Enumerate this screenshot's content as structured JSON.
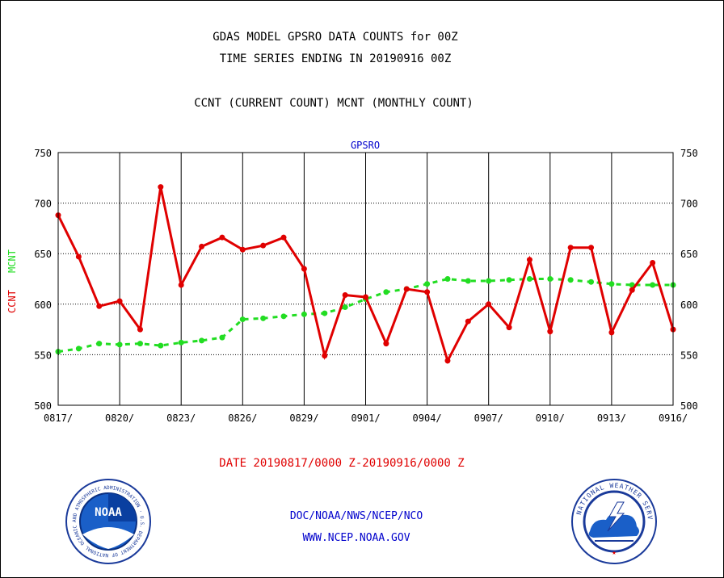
{
  "header": {
    "title_line1": "GDAS MODEL GPSRO DATA COUNTS for 00Z",
    "title_line2": "TIME SERIES ENDING IN 20190916 00Z",
    "subtitle": "CCNT (CURRENT COUNT) MCNT (MONTHLY COUNT)"
  },
  "footer": {
    "date_range": "DATE 20190817/0000 Z-20190916/0000 Z",
    "org_path": "DOC/NOAA/NWS/NCEP/NCO",
    "url": "WWW.NCEP.NOAA.GOV",
    "noaa_logo_text": "NOAA",
    "noaa_ring_text": "NATIONAL OCEANIC AND ATMOSPHERIC ADMINISTRATION · U.S. DEPARTMENT OF COMMERCE",
    "nws_ring_text": "NATIONAL WEATHER SERVICE"
  },
  "colors": {
    "ccnt": "#e00000",
    "mcnt": "#22dd22",
    "panel_title": "#0000cc"
  },
  "chart_data": {
    "type": "line",
    "title": "GPSRO",
    "ylabel_series": [
      "CCNT",
      "MCNT"
    ],
    "ylim": [
      500,
      750
    ],
    "yticks": [
      500,
      550,
      600,
      650,
      700,
      750
    ],
    "xtick_labels": [
      "0817/",
      "0820/",
      "0823/",
      "0826/",
      "0829/",
      "0901/",
      "0904/",
      "0907/",
      "0910/",
      "0913/",
      "0916/"
    ],
    "x_days": 31,
    "grid": true,
    "series": [
      {
        "name": "CCNT",
        "style": "solid",
        "values": [
          688,
          647,
          598,
          603,
          575,
          716,
          619,
          657,
          666,
          654,
          658,
          666,
          635,
          549,
          609,
          607,
          561,
          615,
          612,
          544,
          583,
          600,
          577,
          644,
          573,
          656,
          656,
          572,
          614,
          641,
          575
        ]
      },
      {
        "name": "MCNT",
        "style": "dashed",
        "values": [
          553,
          556,
          561,
          560,
          561,
          559,
          562,
          564,
          567,
          585,
          586,
          588,
          590,
          591,
          597,
          605,
          612,
          615,
          620,
          625,
          623,
          623,
          624,
          625,
          625,
          624,
          622,
          620,
          619,
          619,
          619
        ]
      }
    ]
  }
}
